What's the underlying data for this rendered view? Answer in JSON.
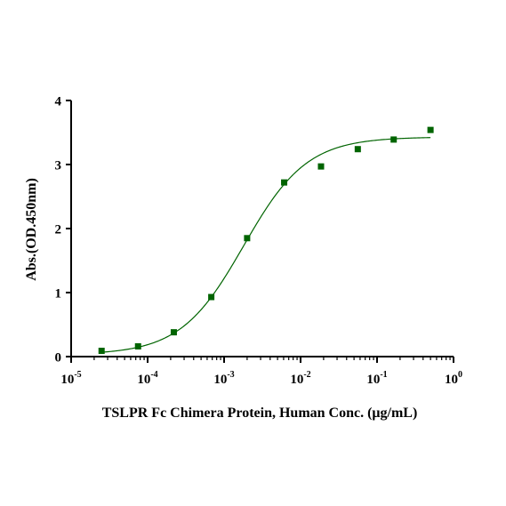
{
  "chart_data": {
    "type": "scatter",
    "xlabel": "TSLPR Fc Chimera Protein, Human Conc. (μg/mL)",
    "ylabel": "Abs.(OD.450nm)",
    "x_scale": "log",
    "xlim": [
      1e-05,
      1
    ],
    "ylim": [
      0,
      4
    ],
    "x_ticks": [
      {
        "value": 1e-05,
        "base": "10",
        "exp": "-5"
      },
      {
        "value": 0.0001,
        "base": "10",
        "exp": "-4"
      },
      {
        "value": 0.001,
        "base": "10",
        "exp": "-3"
      },
      {
        "value": 0.01,
        "base": "10",
        "exp": "-2"
      },
      {
        "value": 0.1,
        "base": "10",
        "exp": "-1"
      },
      {
        "value": 1,
        "base": "10",
        "exp": "0"
      }
    ],
    "y_ticks": [
      {
        "value": 0,
        "label": "0"
      },
      {
        "value": 1,
        "label": "1"
      },
      {
        "value": 2,
        "label": "2"
      },
      {
        "value": 3,
        "label": "3"
      },
      {
        "value": 4,
        "label": "4"
      }
    ],
    "grid": false,
    "legend": "none",
    "series": [
      {
        "x": [
          2.5e-05,
          7.5e-05,
          0.00022,
          0.00068,
          0.002,
          0.0061,
          0.0185,
          0.056,
          0.165,
          0.5
        ],
        "y": [
          0.09,
          0.16,
          0.38,
          0.93,
          1.85,
          2.72,
          2.97,
          3.24,
          3.39,
          3.54
        ],
        "color": "#006400",
        "marker": "square",
        "fit": "4PL",
        "fit_params": {
          "bottom": 0.03,
          "top": 3.43,
          "ec50": 0.0018,
          "hill": 1.05
        }
      }
    ]
  }
}
